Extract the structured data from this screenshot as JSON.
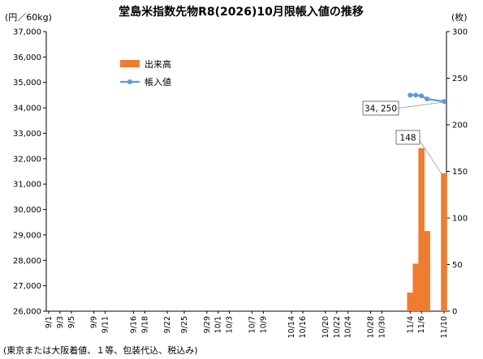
{
  "chart_data": {
    "type": "bar+line",
    "title": "堂島米指数先物R8(2026)10月限帳入値の推移",
    "left_axis_unit": "(円／60kg)",
    "right_axis_unit": "(枚)",
    "left_ylim": [
      26000,
      37000
    ],
    "left_ticks": [
      "26,000",
      "27,000",
      "28,000",
      "29,000",
      "30,000",
      "31,000",
      "32,000",
      "33,000",
      "34,000",
      "35,000",
      "36,000",
      "37,000"
    ],
    "right_ylim": [
      0,
      300
    ],
    "right_ticks": [
      "0",
      "50",
      "100",
      "150",
      "200",
      "250",
      "300"
    ],
    "categories": [
      "9/1",
      "9/3",
      "9/5",
      "9/9",
      "9/11",
      "9/16",
      "9/18",
      "9/22",
      "9/25",
      "9/29",
      "10/1",
      "10/3",
      "10/7",
      "10/9",
      "10/14",
      "10/16",
      "10/20",
      "10/22",
      "10/24",
      "10/28",
      "10/30",
      "11/4",
      "11/6",
      "11/10"
    ],
    "x_day_labels": [
      "9/1",
      "9/3",
      "9/5",
      "9/9",
      "9/11",
      "9/16",
      "9/18",
      "9/22",
      "9/25",
      "9/29",
      "10/1",
      "10/3",
      "10/7",
      "10/9",
      "10/14",
      "10/16",
      "10/20",
      "10/22",
      "10/24",
      "10/28",
      "10/30",
      "11/4",
      "11/6",
      "11/10"
    ],
    "series": [
      {
        "name": "出来高",
        "axis": "right",
        "kind": "bar",
        "color": "#ED7D31",
        "points": [
          {
            "date": "11/4",
            "value": 20
          },
          {
            "date": "11/5",
            "value": 51
          },
          {
            "date": "11/6",
            "value": 175
          },
          {
            "date": "11/7",
            "value": 86
          },
          {
            "date": "11/10",
            "value": 148
          }
        ]
      },
      {
        "name": "帳入値",
        "axis": "left",
        "kind": "line",
        "color": "#5B9BD5",
        "points": [
          {
            "date": "11/4",
            "value": 34500
          },
          {
            "date": "11/5",
            "value": 34500
          },
          {
            "date": "11/6",
            "value": 34470
          },
          {
            "date": "11/7",
            "value": 34350
          },
          {
            "date": "11/10",
            "value": 34250
          }
        ]
      }
    ],
    "callouts": [
      {
        "text": "34, 250",
        "series": "帳入値",
        "date": "11/10"
      },
      {
        "text": "148",
        "series": "出来高",
        "date": "11/10"
      }
    ],
    "legend": {
      "placement": "top-left inside plot",
      "entries": [
        "出来高",
        "帳入値"
      ]
    },
    "footnote": "(東京または大阪着値、１等、包装代込、税込み)",
    "grid": false
  }
}
